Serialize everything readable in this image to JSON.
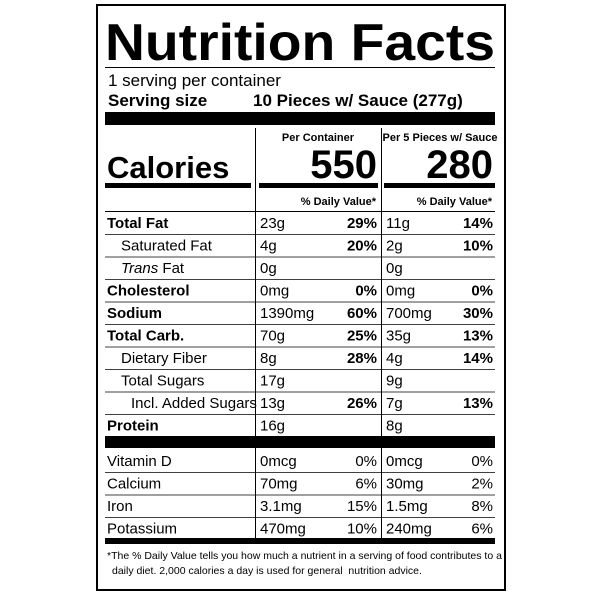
{
  "title": "Nutrition Facts",
  "servings": "1 serving per container",
  "serving_size": {
    "label": "Serving size",
    "value": "10 Pieces w/ Sauce (277g)"
  },
  "calories_label": "Calories",
  "columns": [
    {
      "header": "Per Container",
      "calories": 550,
      "daily_value_header": "% Daily Value*"
    },
    {
      "header": "Per 5 Pieces w/ Sauce",
      "calories": 280,
      "daily_value_header": "% Daily Value*"
    }
  ],
  "nutrients": [
    {
      "label": "Total Fat",
      "amounts": [
        "23g",
        "11g"
      ],
      "daily_values": [
        "29%",
        "14%"
      ]
    },
    {
      "label": "Saturated Fat",
      "amounts": [
        "4g",
        "2g"
      ],
      "daily_values": [
        "20%",
        "10%"
      ]
    },
    {
      "label_italic": "Trans",
      "label": "Fat",
      "amounts": [
        "0g",
        "0g"
      ]
    },
    {
      "label": "Cholesterol",
      "amounts": [
        "0mg",
        "0mg"
      ],
      "daily_values": [
        "0%",
        "0%"
      ]
    },
    {
      "label": "Sodium",
      "amounts": [
        "1390mg",
        "700mg"
      ],
      "daily_values": [
        "60%",
        "30%"
      ]
    },
    {
      "label": "Total Carb.",
      "amounts": [
        "70g",
        "35g"
      ],
      "daily_values": [
        "25%",
        "13%"
      ]
    },
    {
      "label": "Dietary Fiber",
      "amounts": [
        "8g",
        "4g"
      ],
      "daily_values": [
        "28%",
        "14%"
      ]
    },
    {
      "label": "Total Sugars",
      "amounts": [
        "17g",
        "9g"
      ]
    },
    {
      "label": "Incl. Added Sugars",
      "amounts": [
        "13g",
        "7g"
      ],
      "daily_values": [
        "26%",
        "13%"
      ]
    },
    {
      "label": "Protein",
      "amounts": [
        "16g",
        "8g"
      ]
    }
  ],
  "vitamins": [
    {
      "label": "Vitamin D",
      "amounts": [
        "0mcg",
        "0mcg"
      ],
      "daily_values": [
        "0%",
        "0%"
      ]
    },
    {
      "label": "Calcium",
      "amounts": [
        "70mg",
        "30mg"
      ],
      "daily_values": [
        "6%",
        "2%"
      ]
    },
    {
      "label": "Iron",
      "amounts": [
        "3.1mg",
        "1.5mg"
      ],
      "daily_values": [
        "15%",
        "8%"
      ]
    },
    {
      "label": "Potassium",
      "amounts": [
        "470mg",
        "240mg"
      ],
      "daily_values": [
        "10%",
        "6%"
      ]
    }
  ],
  "footnote": [
    "*The % Daily Value tells you how much a nutrient in a serving of food contributes to a",
    "daily diet. 2,000 calories a day is used for general  nutrition advice."
  ]
}
